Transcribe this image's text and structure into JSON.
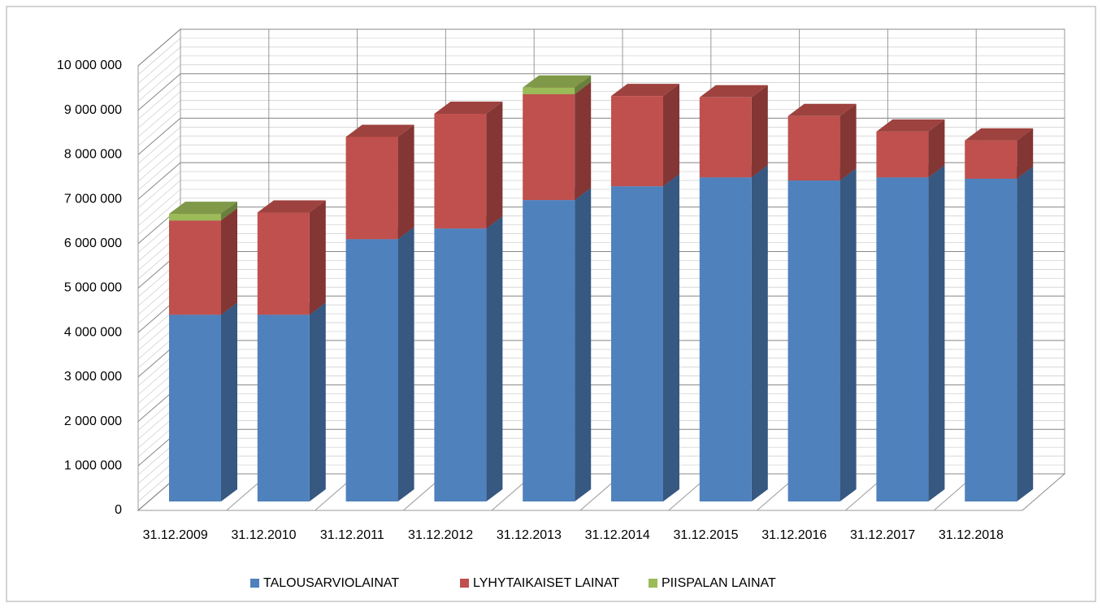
{
  "chart_data": {
    "type": "bar3d_stacked",
    "categories": [
      "31.12.2009",
      "31.12.2010",
      "31.12.2011",
      "31.12.2012",
      "31.12.2013",
      "31.12.2014",
      "31.12.2015",
      "31.12.2016",
      "31.12.2017",
      "31.12.2018"
    ],
    "series": [
      {
        "name": "TALOUSARVIOLAINAT",
        "color": "#4f81bd",
        "values": [
          4200000,
          4200000,
          5900000,
          6140000,
          6780000,
          7090000,
          7290000,
          7220000,
          7290000,
          7260000
        ]
      },
      {
        "name": "LYHYTAIKAISET LAINAT",
        "color": "#c0504d",
        "values": [
          2120000,
          2300000,
          2300000,
          2580000,
          2380000,
          2030000,
          1800000,
          1450000,
          1030000,
          860000
        ]
      },
      {
        "name": "PIISPALAN LAINAT",
        "color": "#9bbb59",
        "values": [
          150000,
          0,
          0,
          0,
          150000,
          0,
          0,
          0,
          0,
          0
        ]
      }
    ],
    "ylim": [
      0,
      10000000
    ],
    "yticks": [
      0,
      {
        "value": 1000000,
        "label": "1 000 000"
      },
      {
        "value": 2000000,
        "label": "2 000 000"
      },
      {
        "value": 3000000,
        "label": "3 000 000"
      },
      {
        "value": 4000000,
        "label": "4 000 000"
      },
      {
        "value": 5000000,
        "label": "5 000 000"
      },
      {
        "value": 6000000,
        "label": "6 000 000"
      },
      {
        "value": 7000000,
        "label": "7 000 000"
      },
      {
        "value": 8000000,
        "label": "8 000 000"
      },
      {
        "value": 9000000,
        "label": "9 000 000"
      },
      {
        "value": 10000000,
        "label": "10 000 000"
      }
    ],
    "grid": true,
    "legend": "bottom"
  }
}
